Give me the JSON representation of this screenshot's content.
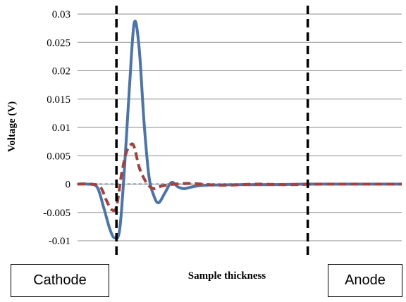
{
  "chart_data": {
    "type": "line",
    "title": "",
    "xlabel": "Sample thickness",
    "ylabel": "Voltage (V)",
    "ylim": [
      -0.01,
      0.03
    ],
    "yticks": [
      -0.01,
      -0.005,
      0,
      0.005,
      0.01,
      0.015,
      0.02,
      0.025,
      0.03
    ],
    "ytick_labels": [
      "-0.01",
      "-0.005",
      "0",
      "0.005",
      "0.01",
      "0.015",
      "0.02",
      "0.025",
      "0.03"
    ],
    "grid": true,
    "xlim": [
      0,
      100
    ],
    "series": [
      {
        "color": "#4a74aa",
        "style": "solid",
        "x": [
          0,
          3,
          6,
          8,
          10,
          11.5,
          13,
          14.5,
          16,
          17.5,
          19,
          20.5,
          22,
          23.5,
          25,
          27,
          29,
          31,
          33,
          36,
          40,
          50,
          60,
          70,
          80,
          90,
          100
        ],
        "y": [
          0,
          0,
          -0.0005,
          -0.004,
          -0.008,
          -0.0095,
          -0.008,
          0.003,
          0.017,
          0.0285,
          0.024,
          0.011,
          0.0015,
          -0.002,
          -0.0033,
          -0.0015,
          0.0003,
          -0.0005,
          -0.0008,
          -0.0004,
          -0.0002,
          -0.0001,
          -0.0001,
          0,
          0,
          0,
          0
        ]
      },
      {
        "color": "#a4413f",
        "style": "dashed",
        "x": [
          0,
          4,
          7,
          9,
          10.5,
          12,
          13.5,
          15,
          16.5,
          17.5,
          19,
          20.5,
          22,
          23.5,
          25,
          27,
          30,
          35,
          45,
          55,
          65,
          75,
          85,
          95,
          100
        ],
        "y": [
          0,
          0,
          -0.0005,
          -0.003,
          -0.0045,
          -0.004,
          0.0015,
          0.0055,
          0.007,
          0.0065,
          0.003,
          0.001,
          -0.0003,
          -0.0008,
          -0.0005,
          -0.0002,
          0,
          0.0001,
          -0.0002,
          0,
          -0.0001,
          0,
          0,
          0,
          0
        ]
      },
      {
        "color": "#a9b6c8",
        "style": "dotted",
        "x": [
          0,
          100
        ],
        "y": [
          0,
          0
        ]
      }
    ],
    "vlines": [
      {
        "x": 12,
        "label": "Cathode"
      },
      {
        "x": 71,
        "label": "Anode"
      }
    ]
  }
}
